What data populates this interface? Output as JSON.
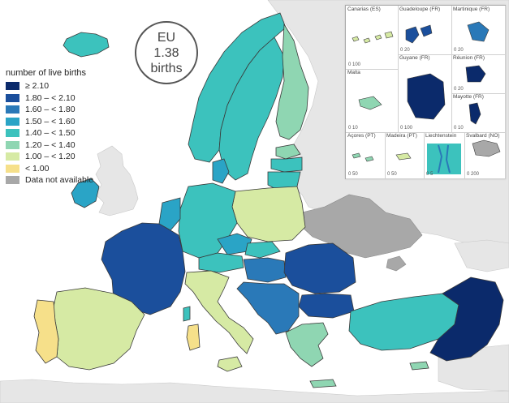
{
  "headline": {
    "region": "EU",
    "value": "1.38",
    "unit": "births"
  },
  "legend": {
    "title": "number of live births",
    "classes": [
      {
        "label": "≥ 2.10",
        "color": "#0b2a6b"
      },
      {
        "label": "1.80 – < 2.10",
        "color": "#1b4f9c"
      },
      {
        "label": "1.60 – < 1.80",
        "color": "#2a79b8"
      },
      {
        "label": "1.50 – < 1.60",
        "color": "#2aa4c6"
      },
      {
        "label": "1.40 – < 1.50",
        "color": "#3cc2bd"
      },
      {
        "label": "1.20 – < 1.40",
        "color": "#8fd6b2"
      },
      {
        "label": "1.00 – < 1.20",
        "color": "#d6eaa4"
      },
      {
        "label": "< 1.00",
        "color": "#f6e08a"
      }
    ],
    "no_data": {
      "label": "Data not available",
      "color": "#a8a8a8"
    }
  },
  "insets": [
    {
      "name": "Canarias (ES)",
      "scale": "0   100",
      "fill": "#d6eaa4"
    },
    {
      "name": "Guadeloupe (FR)",
      "scale": "0   20",
      "fill": "#1b4f9c"
    },
    {
      "name": "Martinique (FR)",
      "scale": "0   20",
      "fill": "#2a79b8"
    },
    {
      "name": "Malta",
      "scale": "0   10",
      "fill": "#8fd6b2"
    },
    {
      "name": "Guyane (FR)",
      "scale": "0   100",
      "fill": "#0b2a6b"
    },
    {
      "name": "Réunion (FR)",
      "scale": "0   20",
      "fill": "#0b2a6b"
    },
    {
      "name": "Mayotte (FR)",
      "scale": "0   10",
      "fill": "#0b2a6b"
    },
    {
      "name": "Açores (PT)",
      "scale": "0   50",
      "fill": "#8fd6b2"
    },
    {
      "name": "Madeira (PT)",
      "scale": "0   50",
      "fill": "#d6eaa4"
    },
    {
      "name": "Liechtenstein",
      "scale": "0   5",
      "fill": "#3cc2bd"
    },
    {
      "name": "Svalbard (NO)",
      "scale": "0   200",
      "fill": "#a8a8a8"
    }
  ],
  "map_colors": {
    "sea": "#ffffff",
    "non_eu_land": "#e6e6e6",
    "border": "#3a3a3a"
  }
}
